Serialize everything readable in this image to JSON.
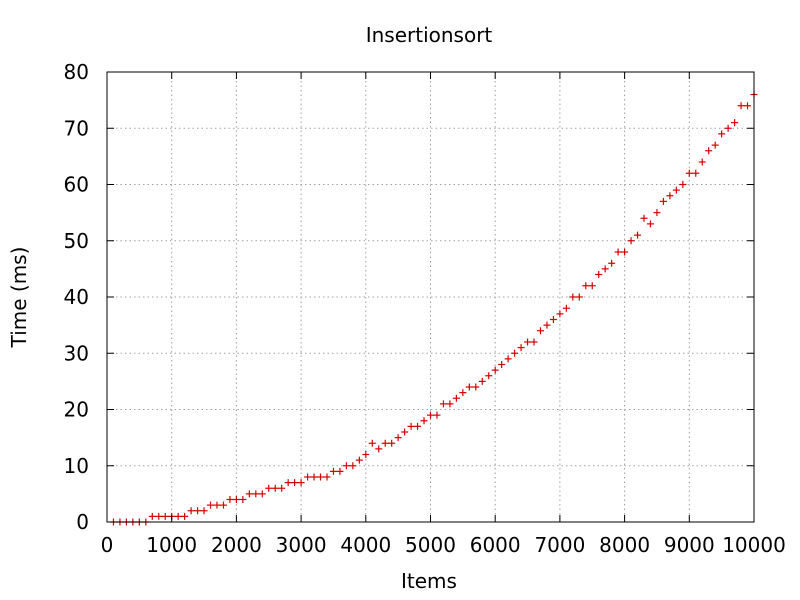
{
  "chart_data": {
    "type": "scatter",
    "title": "Insertionsort",
    "xlabel": "Items",
    "ylabel": "Time (ms)",
    "xlim": [
      0,
      10000
    ],
    "ylim": [
      0,
      80
    ],
    "xticks": [
      0,
      1000,
      2000,
      3000,
      4000,
      5000,
      6000,
      7000,
      8000,
      9000,
      10000
    ],
    "yticks": [
      0,
      10,
      20,
      30,
      40,
      50,
      60,
      70,
      80
    ],
    "grid": true,
    "marker": "plus",
    "color": "#d40000",
    "series": [
      {
        "x": [
          100,
          200,
          300,
          400,
          500,
          600,
          700,
          800,
          900,
          1000,
          1100,
          1200,
          1300,
          1400,
          1500,
          1600,
          1700,
          1800,
          1900,
          2000,
          2100,
          2200,
          2300,
          2400,
          2500,
          2600,
          2700,
          2800,
          2900,
          3000,
          3100,
          3200,
          3300,
          3400,
          3500,
          3600,
          3700,
          3800,
          3900,
          4000,
          4100,
          4200,
          4300,
          4400,
          4500,
          4600,
          4700,
          4800,
          4900,
          5000,
          5100,
          5200,
          5300,
          5400,
          5500,
          5600,
          5700,
          5800,
          5900,
          6000,
          6100,
          6200,
          6300,
          6400,
          6500,
          6600,
          6700,
          6800,
          6900,
          7000,
          7100,
          7200,
          7300,
          7400,
          7500,
          7600,
          7700,
          7800,
          7900,
          8000,
          8100,
          8200,
          8300,
          8400,
          8500,
          8600,
          8700,
          8800,
          8900,
          9000,
          9100,
          9200,
          9300,
          9400,
          9500,
          9600,
          9700,
          9800,
          9900,
          10000
        ],
        "y": [
          0,
          0,
          0,
          0,
          0,
          0,
          1,
          1,
          1,
          1,
          1,
          1,
          2,
          2,
          2,
          3,
          3,
          3,
          4,
          4,
          4,
          5,
          5,
          5,
          6,
          6,
          6,
          7,
          7,
          7,
          8,
          8,
          8,
          8,
          9,
          9,
          10,
          10,
          11,
          12,
          14,
          13,
          14,
          14,
          15,
          16,
          17,
          17,
          18,
          19,
          19,
          21,
          21,
          22,
          23,
          24,
          24,
          25,
          26,
          27,
          28,
          29,
          30,
          31,
          32,
          32,
          34,
          35,
          36,
          37,
          38,
          40,
          40,
          42,
          42,
          44,
          45,
          46,
          48,
          48,
          50,
          51,
          54,
          53,
          55,
          57,
          58,
          59,
          60,
          62,
          62,
          64,
          66,
          67,
          69,
          70,
          71,
          74,
          74,
          76
        ]
      }
    ]
  }
}
